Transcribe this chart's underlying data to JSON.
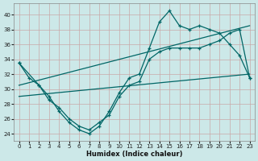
{
  "xlabel": "Humidex (Indice chaleur)",
  "background_color": "#cce8e8",
  "grid_color": "#c8a8a8",
  "line_color": "#006666",
  "xlim": [
    -0.5,
    23.5
  ],
  "ylim": [
    23.0,
    41.5
  ],
  "xticks": [
    0,
    1,
    2,
    3,
    4,
    5,
    6,
    7,
    8,
    9,
    10,
    11,
    12,
    13,
    14,
    15,
    16,
    17,
    18,
    19,
    20,
    21,
    22,
    23
  ],
  "yticks": [
    24,
    26,
    28,
    30,
    32,
    34,
    36,
    38,
    40
  ],
  "series1_x": [
    0,
    1,
    2,
    3,
    4,
    5,
    6,
    7,
    8,
    9,
    10,
    11,
    12,
    13,
    14,
    15,
    16,
    17,
    18,
    19,
    20,
    21,
    22,
    23
  ],
  "series1_y": [
    33.5,
    31.5,
    30.5,
    29.0,
    27.0,
    25.5,
    24.5,
    24.0,
    25.0,
    27.0,
    29.5,
    31.5,
    32.0,
    35.5,
    39.0,
    40.5,
    38.5,
    38.0,
    38.5,
    38.0,
    37.5,
    36.0,
    34.5,
    31.5
  ],
  "series2_x": [
    0,
    2,
    3,
    4,
    5,
    6,
    7,
    8,
    9,
    10,
    11,
    12,
    13,
    14,
    15,
    16,
    17,
    18,
    19,
    20,
    21,
    22,
    23
  ],
  "series2_y": [
    33.5,
    30.5,
    28.5,
    27.5,
    26.0,
    25.0,
    24.5,
    25.5,
    26.5,
    29.0,
    30.5,
    31.0,
    34.0,
    35.0,
    35.5,
    35.5,
    35.5,
    35.5,
    36.0,
    36.5,
    37.5,
    38.0,
    31.5
  ],
  "trend1_x": [
    0,
    23
  ],
  "trend1_y": [
    30.5,
    38.5
  ],
  "trend2_x": [
    0,
    23
  ],
  "trend2_y": [
    29.0,
    32.0
  ]
}
